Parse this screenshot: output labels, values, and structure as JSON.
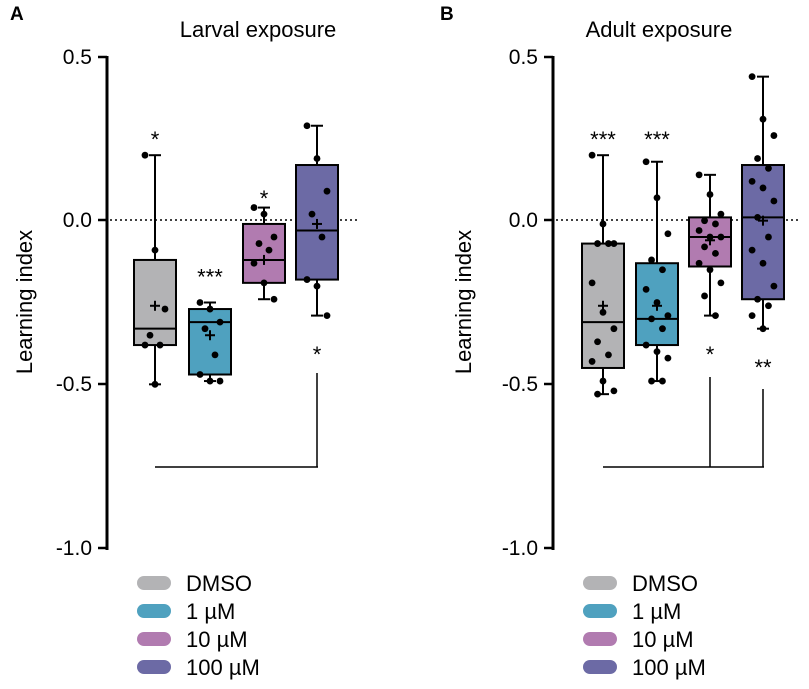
{
  "chart_data": [
    {
      "panel": "A",
      "type": "boxplot",
      "title": "Larval exposure",
      "ylabel": "Learning index",
      "ylim": [
        -1.0,
        0.5
      ],
      "yticks": [
        0.5,
        0.0,
        -0.5,
        -1.0
      ],
      "ytick_labels": [
        "0.5",
        "0.0",
        "-0.5",
        "-1.0"
      ],
      "reference_line": 0.0,
      "groups": [
        {
          "name": "DMSO",
          "color": "#b3b3b5",
          "whisker_low": -0.5,
          "q1": -0.38,
          "median": -0.33,
          "q3": -0.12,
          "whisker_high": 0.2,
          "mean": -0.26,
          "points": [
            0.2,
            -0.09,
            -0.27,
            -0.35,
            -0.38,
            -0.38,
            -0.5
          ],
          "sig": "*",
          "sig_y": 0.25
        },
        {
          "name": "1 µM",
          "color": "#4fa1bf",
          "whisker_low": -0.49,
          "q1": -0.47,
          "median": -0.31,
          "q3": -0.27,
          "whisker_high": -0.25,
          "mean": -0.35,
          "points": [
            -0.25,
            -0.27,
            -0.31,
            -0.33,
            -0.41,
            -0.47,
            -0.49,
            -0.49
          ],
          "sig": "***",
          "sig_y": -0.17
        },
        {
          "name": "10 µM",
          "color": "#b17bb0",
          "whisker_low": -0.24,
          "q1": -0.19,
          "median": -0.12,
          "q3": -0.01,
          "whisker_high": 0.04,
          "mean": -0.12,
          "points": [
            0.04,
            0.02,
            -0.05,
            -0.07,
            -0.09,
            -0.13,
            -0.19,
            -0.24
          ],
          "sig": "*",
          "sig_y": 0.07
        },
        {
          "name": "100 µM",
          "color": "#6c6aa5",
          "whisker_low": -0.29,
          "q1": -0.18,
          "median": -0.03,
          "q3": 0.17,
          "whisker_high": 0.29,
          "mean": -0.01,
          "points": [
            0.29,
            0.19,
            0.09,
            0.02,
            -0.05,
            -0.18,
            -0.2,
            -0.29
          ],
          "sig": "",
          "sig_y": 0.0
        }
      ],
      "bracket_label": "*",
      "bracket_from": "DMSO",
      "bracket_to": "100 µM"
    },
    {
      "panel": "B",
      "type": "boxplot",
      "title": "Adult exposure",
      "ylabel": "Learning index",
      "ylim": [
        -1.0,
        0.5
      ],
      "yticks": [
        0.5,
        0.0,
        -0.5,
        -1.0
      ],
      "ytick_labels": [
        "0.5",
        "0.0",
        "-0.5",
        "-1.0"
      ],
      "reference_line": 0.0,
      "groups": [
        {
          "name": "DMSO",
          "color": "#b3b3b5",
          "whisker_low": -0.53,
          "q1": -0.45,
          "median": -0.31,
          "q3": -0.07,
          "whisker_high": 0.2,
          "mean": -0.26,
          "points": [
            0.2,
            -0.01,
            -0.07,
            -0.07,
            -0.07,
            -0.19,
            -0.28,
            -0.33,
            -0.37,
            -0.41,
            -0.43,
            -0.49,
            -0.52,
            -0.53
          ],
          "sig": "***",
          "sig_y": 0.25
        },
        {
          "name": "1 µM",
          "color": "#4fa1bf",
          "whisker_low": -0.49,
          "q1": -0.38,
          "median": -0.3,
          "q3": -0.13,
          "whisker_high": 0.18,
          "mean": -0.26,
          "points": [
            0.18,
            0.07,
            -0.04,
            -0.12,
            -0.15,
            -0.21,
            -0.25,
            -0.29,
            -0.3,
            -0.33,
            -0.38,
            -0.4,
            -0.42,
            -0.49,
            -0.49
          ],
          "sig": "***",
          "sig_y": 0.25
        },
        {
          "name": "10 µM",
          "color": "#b17bb0",
          "whisker_low": -0.29,
          "q1": -0.14,
          "median": -0.05,
          "q3": 0.01,
          "whisker_high": 0.14,
          "mean": -0.06,
          "points": [
            0.14,
            0.08,
            0.02,
            0.0,
            -0.01,
            -0.03,
            -0.05,
            -0.05,
            -0.08,
            -0.1,
            -0.13,
            -0.15,
            -0.19,
            -0.23,
            -0.29
          ],
          "sig": "",
          "sig_y": 0.0
        },
        {
          "name": "100 µM",
          "color": "#6c6aa5",
          "whisker_low": -0.33,
          "q1": -0.24,
          "median": 0.01,
          "q3": 0.17,
          "whisker_high": 0.44,
          "mean": 0.0,
          "points": [
            0.44,
            0.31,
            0.26,
            0.19,
            0.16,
            0.12,
            0.1,
            0.06,
            0.01,
            -0.05,
            -0.09,
            -0.13,
            -0.2,
            -0.24,
            -0.26,
            -0.29,
            -0.33
          ],
          "sig": "",
          "sig_y": 0.0
        }
      ],
      "bracket_labels": {
        "10 µM": "*",
        "100 µM": "**"
      },
      "bracket_from": "DMSO",
      "bracket_to": [
        "10 µM",
        "100 µM"
      ]
    }
  ],
  "legend": {
    "items": [
      {
        "label": "DMSO",
        "color": "#b3b3b5"
      },
      {
        "label": "1 µM",
        "color": "#4fa1bf"
      },
      {
        "label": "10 µM",
        "color": "#b17bb0"
      },
      {
        "label": "100 µM",
        "color": "#6c6aa5"
      }
    ]
  }
}
